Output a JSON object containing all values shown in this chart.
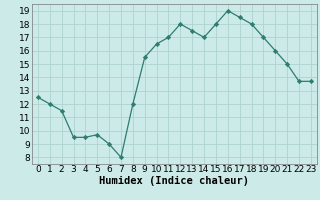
{
  "x": [
    0,
    1,
    2,
    3,
    4,
    5,
    6,
    7,
    8,
    9,
    10,
    11,
    12,
    13,
    14,
    15,
    16,
    17,
    18,
    19,
    20,
    21,
    22,
    23
  ],
  "y": [
    12.5,
    12.0,
    11.5,
    9.5,
    9.5,
    9.7,
    9.0,
    8.0,
    12.0,
    15.5,
    16.5,
    17.0,
    18.0,
    17.5,
    17.0,
    18.0,
    19.0,
    18.5,
    18.0,
    17.0,
    16.0,
    15.0,
    13.7,
    13.7
  ],
  "line_color": "#2e7d6e",
  "marker": "D",
  "marker_size": 2.2,
  "bg_color": "#cceae8",
  "grid_color": "#aed4d0",
  "xlabel": "Humidex (Indice chaleur)",
  "xlim": [
    -0.5,
    23.5
  ],
  "ylim": [
    7.5,
    19.5
  ],
  "yticks": [
    8,
    9,
    10,
    11,
    12,
    13,
    14,
    15,
    16,
    17,
    18,
    19
  ],
  "xticks": [
    0,
    1,
    2,
    3,
    4,
    5,
    6,
    7,
    8,
    9,
    10,
    11,
    12,
    13,
    14,
    15,
    16,
    17,
    18,
    19,
    20,
    21,
    22,
    23
  ],
  "xlabel_fontsize": 7.5,
  "tick_fontsize": 6.5
}
